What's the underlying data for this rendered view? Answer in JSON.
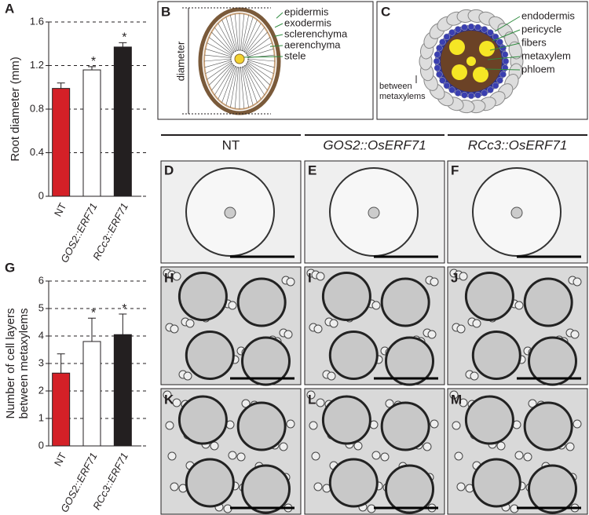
{
  "chart_data": [
    {
      "type": "bar",
      "y_label": [
        "Root diameter (mm)"
      ],
      "categories": [
        "NT",
        "GOS2::ERF71",
        "RCc3::ERF71"
      ],
      "values": [
        0.99,
        1.16,
        1.37
      ],
      "errors": [
        0.05,
        0.03,
        0.04
      ],
      "colors": [
        "#d42027",
        "#ffffff",
        "#231f20"
      ],
      "significance": [
        null,
        "*",
        "*"
      ],
      "ylim": [
        0,
        1.6
      ],
      "yticks": [
        0,
        0.4,
        0.8,
        1.2,
        1.6
      ],
      "grid": true
    },
    {
      "type": "bar",
      "y_label": [
        "Number of cell layers",
        "between metaxylems"
      ],
      "categories": [
        "NT",
        "GOS2::ERF71",
        "RCc3::ERF71"
      ],
      "values": [
        2.65,
        3.8,
        4.05
      ],
      "errors": [
        0.7,
        0.85,
        0.75
      ],
      "colors": [
        "#d42027",
        "#ffffff",
        "#231f20"
      ],
      "significance": [
        null,
        "*",
        "*"
      ],
      "ylim": [
        0,
        6
      ],
      "yticks": [
        0,
        1,
        2,
        3,
        4,
        5,
        6
      ],
      "grid": true
    }
  ],
  "panel_labels": [
    "A",
    "B",
    "C",
    "D",
    "E",
    "F",
    "G",
    "H",
    "I",
    "J",
    "K",
    "L",
    "M"
  ],
  "diagram_b": {
    "labels": [
      "epidermis",
      "exodermis",
      "sclerenchyma",
      "aerenchyma",
      "stele"
    ],
    "dimension": "diameter"
  },
  "diagram_c": {
    "labels": [
      "endodermis",
      "pericycle",
      "fibers",
      "metaxylem",
      "phloem"
    ],
    "dimension": [
      "between",
      "metaxylems"
    ]
  },
  "columns": [
    "NT",
    "GOS2::OsERF71",
    "RCc3::OsERF71"
  ]
}
